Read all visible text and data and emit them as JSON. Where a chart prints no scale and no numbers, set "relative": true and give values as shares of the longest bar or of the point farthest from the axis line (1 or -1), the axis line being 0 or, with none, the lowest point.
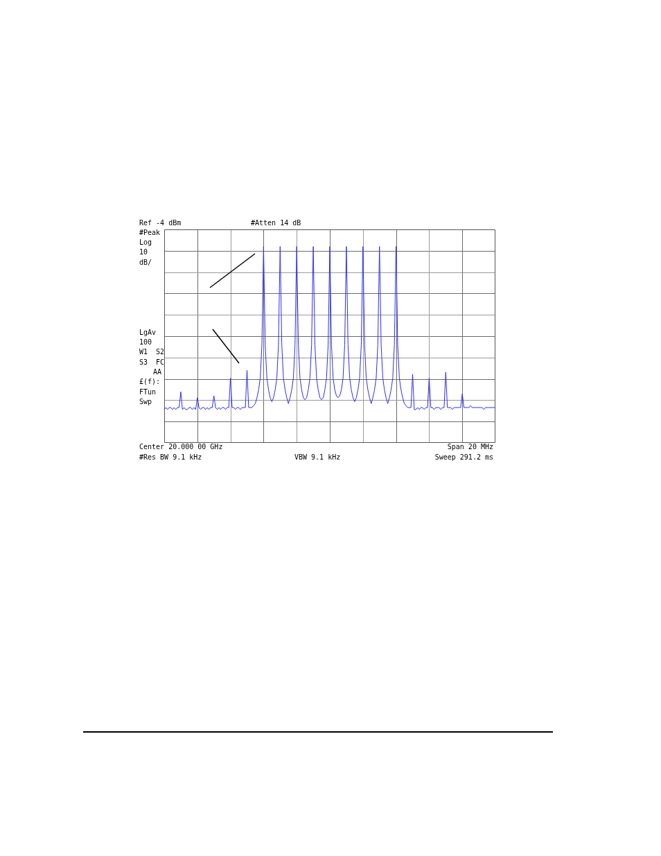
{
  "chart_data": {
    "type": "line",
    "relative": true,
    "grid": true,
    "categories": [
      null,
      null,
      null,
      null,
      null,
      null,
      null,
      null,
      null,
      null,
      null,
      null,
      null,
      null,
      null,
      null,
      null,
      null,
      null,
      null,
      null,
      null,
      null,
      null,
      null,
      null,
      null,
      null,
      null,
      null,
      null,
      null,
      null,
      null,
      null,
      null,
      null,
      null,
      null,
      null,
      null,
      null,
      null,
      null,
      null,
      null,
      null,
      null,
      null,
      null,
      null,
      null,
      null,
      null,
      null,
      null,
      null,
      null,
      null,
      null,
      null,
      null,
      null,
      null,
      null,
      null,
      null,
      null,
      null,
      null,
      null,
      null,
      null,
      null,
      null,
      null,
      null,
      null,
      null,
      null,
      null,
      null,
      null,
      null,
      null,
      null,
      null,
      null,
      null,
      null,
      null,
      null,
      null,
      null,
      null,
      null,
      null,
      null,
      null,
      null,
      null,
      null,
      null,
      null,
      null,
      null,
      null,
      null,
      null,
      null,
      null,
      null,
      null,
      null,
      null,
      null,
      null,
      null,
      null,
      null,
      null,
      null,
      null,
      null,
      null,
      null,
      null,
      null,
      null,
      null,
      null,
      null,
      null,
      null,
      null,
      null,
      null,
      null,
      null,
      null,
      null,
      null,
      null,
      null,
      null,
      null,
      null,
      null,
      null,
      null,
      null,
      null,
      null,
      null,
      null,
      null,
      null,
      null,
      null,
      null,
      null,
      null,
      null,
      null,
      null,
      null,
      null,
      null,
      null,
      null,
      null,
      null,
      null,
      null,
      null,
      null,
      null,
      null,
      null,
      null,
      null,
      null,
      null,
      null,
      null,
      null,
      null,
      null,
      null,
      null,
      null,
      null,
      null,
      null,
      null,
      null,
      null,
      null,
      null,
      null,
      null
    ],
    "series": [
      {
        "color": "#2b2bff",
        "values": [
          0.17,
          0.18,
          0.17,
          0.18,
          0.18,
          0.17,
          0.18,
          0.17,
          0.18,
          0.18,
          0.26,
          0.17,
          0.18,
          0.17,
          0.17,
          0.18,
          0.18,
          0.17,
          0.18,
          0.17,
          0.23,
          0.18,
          0.17,
          0.18,
          0.18,
          0.17,
          0.18,
          0.17,
          0.18,
          0.18,
          0.24,
          0.18,
          0.17,
          0.18,
          0.17,
          0.18,
          0.18,
          0.17,
          0.18,
          0.18,
          0.33,
          0.18,
          0.18,
          0.17,
          0.18,
          0.18,
          0.17,
          0.18,
          0.18,
          0.18,
          0.37,
          0.18,
          0.18,
          0.18,
          0.19,
          0.2,
          0.23,
          0.27,
          0.33,
          0.5,
          1,
          0.5,
          0.33,
          0.27,
          0.23,
          0.21,
          0.23,
          0.27,
          0.33,
          0.5,
          1,
          0.5,
          0.33,
          0.27,
          0.23,
          0.2,
          0.23,
          0.27,
          0.33,
          0.5,
          1,
          0.5,
          0.33,
          0.27,
          0.23,
          0.22,
          0.23,
          0.27,
          0.33,
          0.5,
          1,
          0.5,
          0.33,
          0.27,
          0.23,
          0.22,
          0.23,
          0.27,
          0.33,
          0.5,
          1,
          0.5,
          0.33,
          0.27,
          0.24,
          0.23,
          0.24,
          0.27,
          0.33,
          0.5,
          1,
          0.5,
          0.33,
          0.27,
          0.23,
          0.21,
          0.23,
          0.27,
          0.33,
          0.5,
          1,
          0.5,
          0.33,
          0.27,
          0.23,
          0.2,
          0.23,
          0.27,
          0.33,
          0.5,
          1,
          0.5,
          0.33,
          0.27,
          0.23,
          0.2,
          0.23,
          0.27,
          0.33,
          0.5,
          1,
          0.5,
          0.33,
          0.27,
          0.23,
          0.2,
          0.19,
          0.18,
          0.18,
          0.18,
          0.35,
          0.17,
          0.17,
          0.18,
          0.17,
          0.18,
          0.18,
          0.17,
          0.18,
          0.18,
          0.33,
          0.18,
          0.18,
          0.17,
          0.18,
          0.18,
          0.18,
          0.17,
          0.18,
          0.18,
          0.36,
          0.18,
          0.18,
          0.18,
          0.17,
          0.18,
          0.18,
          0.18,
          0.18,
          0.18,
          0.25,
          0.18,
          0.18,
          0.18,
          0.18,
          0.19,
          0.18,
          0.18,
          0.18,
          0.18,
          0.18,
          0.18,
          0.18,
          0.17,
          0.18,
          0.18,
          0.18,
          0.18,
          0.18,
          0.18,
          0.18
        ]
      }
    ],
    "annotations": [
      "Ref -4 dBm",
      "#Atten 14 dB",
      "#Peak",
      "Log",
      "10",
      "dB/",
      "LgAv",
      "100",
      "W1  S2",
      "S3  FC",
      "AA",
      "£(f):",
      "FTun",
      "Swp",
      "Center 20.000 00 GHz",
      "Span 20 MHz",
      "#Res BW 9.1 kHz",
      "VBW 9.1 kHz",
      "Sweep 291.2 ms"
    ]
  }
}
